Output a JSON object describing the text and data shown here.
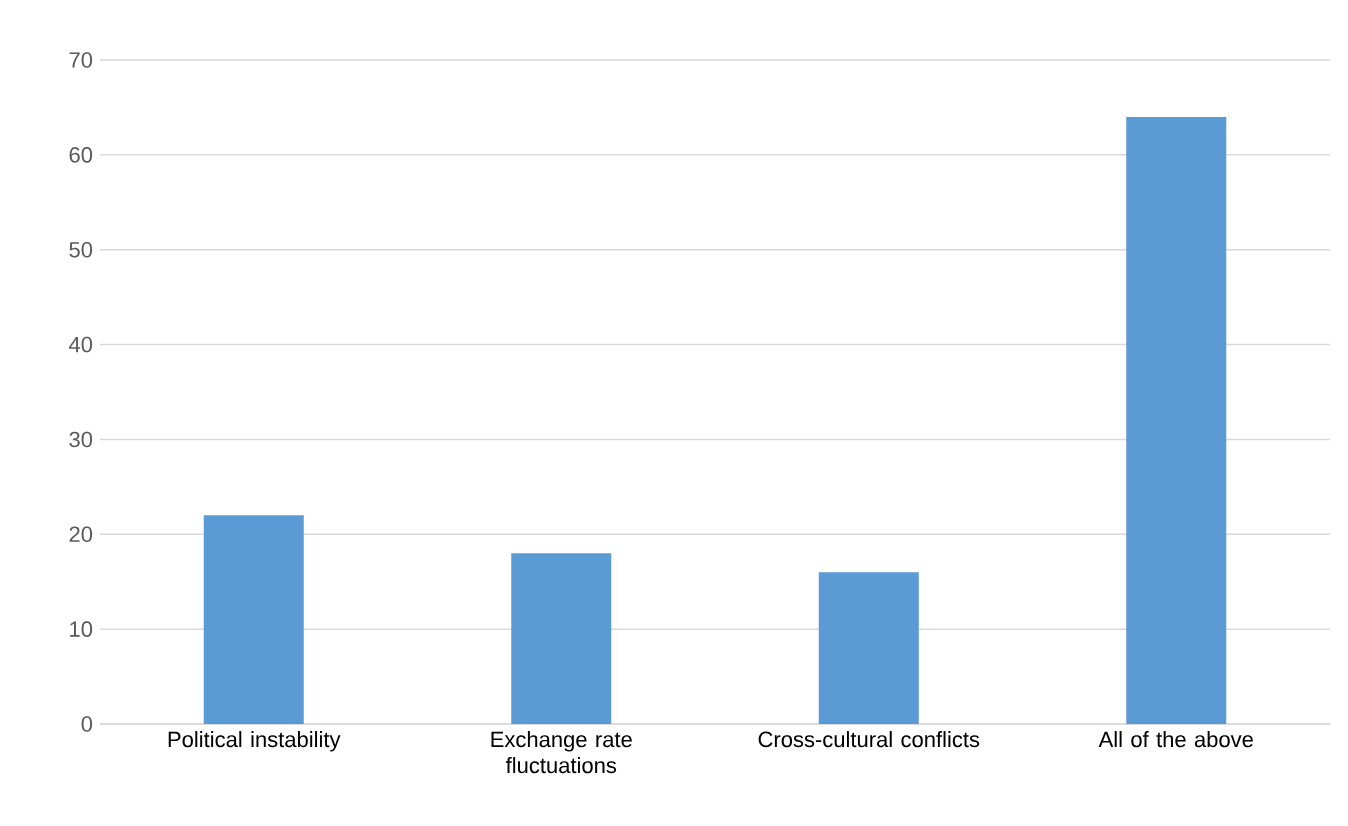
{
  "chart_data": {
    "type": "bar",
    "categories": [
      "Political instability",
      "Exchange rate fluctuations",
      "Cross-cultural conflicts",
      "All of the above"
    ],
    "values": [
      22,
      18,
      16,
      64
    ],
    "color": "#5b9bd5",
    "ylim": [
      0,
      70
    ],
    "yticks": [
      0,
      10,
      20,
      30,
      40,
      50,
      60,
      70
    ],
    "grid": "y"
  }
}
